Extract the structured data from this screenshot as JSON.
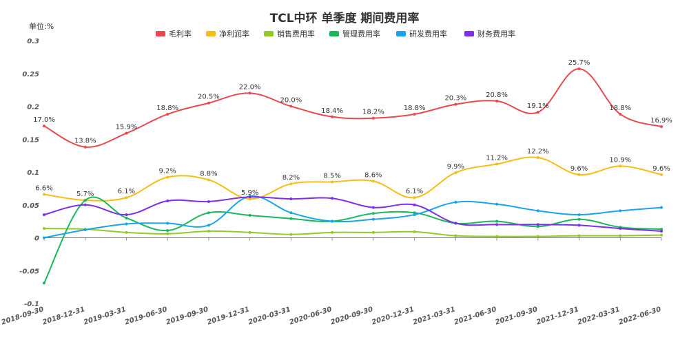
{
  "chart_data": {
    "type": "line",
    "title": "TCL中环 单季度 期间费用率",
    "unit_label": "单位:%",
    "ylim": [
      -0.1,
      0.3
    ],
    "yticks": [
      -0.1,
      -0.05,
      0,
      0.05,
      0.1,
      0.15,
      0.2,
      0.25,
      0.3
    ],
    "ytick_labels": [
      "-0.1",
      "-0.05",
      "0",
      "0.05",
      "0.1",
      "0.15",
      "0.2",
      "0.25",
      "0.3"
    ],
    "grid": false,
    "legend_position": "top",
    "categories": [
      "2018-09-30",
      "2018-12-31",
      "2019-03-31",
      "2019-06-30",
      "2019-09-30",
      "2019-12-31",
      "2020-03-31",
      "2020-06-30",
      "2020-09-30",
      "2020-12-31",
      "2021-03-31",
      "2021-06-30",
      "2021-09-30",
      "2021-12-31",
      "2022-03-31",
      "2022-06-30"
    ],
    "series": [
      {
        "name": "毛利率",
        "color": "#e8484f",
        "values": [
          0.17,
          0.138,
          0.159,
          0.188,
          0.205,
          0.22,
          0.2,
          0.184,
          0.182,
          0.188,
          0.203,
          0.208,
          0.191,
          0.257,
          0.188,
          0.169
        ],
        "labels": [
          "17.0%",
          "13.8%",
          "15.9%",
          "18.8%",
          "20.5%",
          "22.0%",
          "20.0%",
          "18.4%",
          "18.2%",
          "18.8%",
          "20.3%",
          "20.8%",
          "19.1%",
          "25.7%",
          "18.8%",
          "16.9%"
        ]
      },
      {
        "name": "净利润率",
        "color": "#f5bd17",
        "values": [
          0.066,
          0.057,
          0.061,
          0.092,
          0.088,
          0.059,
          0.082,
          0.085,
          0.086,
          0.061,
          0.099,
          0.112,
          0.122,
          0.096,
          0.109,
          0.096
        ],
        "labels": [
          "6.6%",
          "5.7%",
          "6.1%",
          "9.2%",
          "8.8%",
          "5.9%",
          "8.2%",
          "8.5%",
          "8.6%",
          "6.1%",
          "9.9%",
          "11.2%",
          "12.2%",
          "9.6%",
          "10.9%",
          "9.6%"
        ]
      },
      {
        "name": "销售费用率",
        "color": "#95c929",
        "values": [
          0.014,
          0.013,
          0.008,
          0.006,
          0.01,
          0.008,
          0.005,
          0.008,
          0.008,
          0.009,
          0.003,
          0.002,
          0.002,
          0.003,
          0.003,
          0.004
        ]
      },
      {
        "name": "管理费用率",
        "color": "#1ab85a",
        "values": [
          -0.069,
          0.057,
          0.03,
          0.011,
          0.038,
          0.034,
          0.029,
          0.025,
          0.037,
          0.038,
          0.022,
          0.025,
          0.017,
          0.028,
          0.016,
          0.013
        ]
      },
      {
        "name": "研发费用率",
        "color": "#1aa3e8",
        "values": [
          0.0,
          0.012,
          0.021,
          0.022,
          0.019,
          0.063,
          0.038,
          0.025,
          0.028,
          0.035,
          0.054,
          0.051,
          0.041,
          0.035,
          0.041,
          0.046
        ]
      },
      {
        "name": "财务费用率",
        "color": "#7d2ee6",
        "values": [
          0.035,
          0.05,
          0.035,
          0.056,
          0.055,
          0.062,
          0.059,
          0.06,
          0.046,
          0.05,
          0.022,
          0.02,
          0.02,
          0.019,
          0.014,
          0.01
        ]
      }
    ]
  }
}
